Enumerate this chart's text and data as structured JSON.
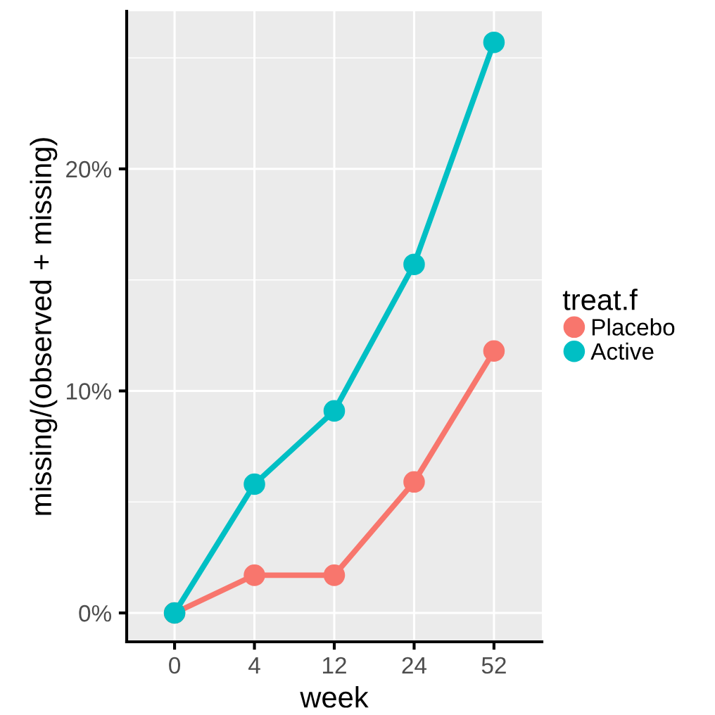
{
  "chart_data": {
    "type": "line",
    "xlabel": "week",
    "ylabel": "missing/(observed + missing)",
    "legend_title": "treat.f",
    "categories": [
      "0",
      "4",
      "12",
      "24",
      "52"
    ],
    "series": [
      {
        "name": "Placebo",
        "color": "#f8766d",
        "values": [
          0,
          1.7,
          1.7,
          5.9,
          11.8
        ]
      },
      {
        "name": "Active",
        "color": "#00bfc4",
        "values": [
          0,
          5.8,
          9.1,
          15.7,
          25.7
        ]
      }
    ],
    "ylim": [
      -1.3,
      27.1
    ],
    "yticks": [
      {
        "value": 0,
        "label": "0%"
      },
      {
        "value": 10,
        "label": "10%"
      },
      {
        "value": 20,
        "label": "20%"
      }
    ],
    "grid": true,
    "legend": "right",
    "marker": "circle",
    "line_style": "solid"
  }
}
